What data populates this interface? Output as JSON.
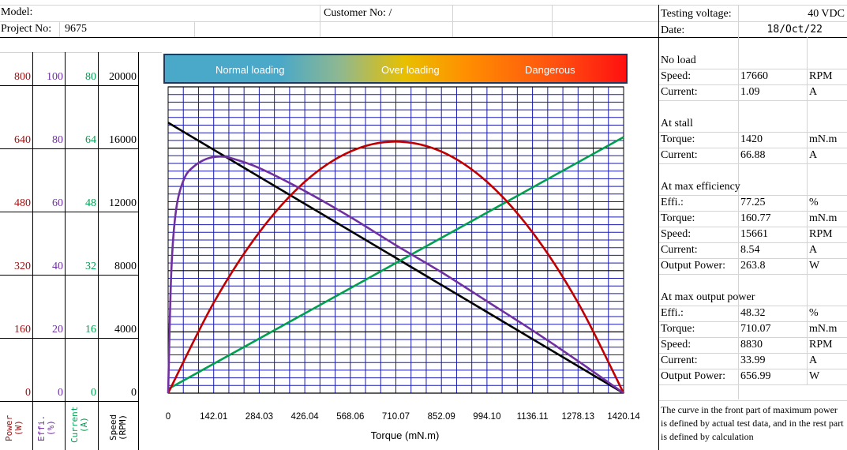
{
  "header": {
    "model_label": "Model:",
    "project_label": "Project No:",
    "project_value": "9675",
    "customer_label": "Customer No: /",
    "voltage_label": "Testing voltage:",
    "voltage_value": "40 VDC",
    "date_label": "Date:",
    "date_value": "18/Oct/22"
  },
  "loading_bar": {
    "normal": "Normal loading",
    "over": "Over loading",
    "danger": "Dangerous"
  },
  "left_axes": {
    "power": {
      "ticks": [
        "800",
        "640",
        "480",
        "320",
        "160",
        "0"
      ],
      "label": "Power (W)",
      "color": "#a01010"
    },
    "effi": {
      "ticks": [
        "100",
        "80",
        "60",
        "40",
        "20",
        "0"
      ],
      "label": "Effi. (%)",
      "color": "#7030a0"
    },
    "current": {
      "ticks": [
        "80",
        "64",
        "48",
        "32",
        "16",
        "0"
      ],
      "label": "Current (A)",
      "color": "#00a050"
    },
    "speed": {
      "ticks": [
        "20000",
        "16000",
        "12000",
        "8000",
        "4000",
        "0"
      ],
      "label": "Speed (RPM)",
      "color": "#000000"
    }
  },
  "right_panel": {
    "no_load": {
      "title": "No load",
      "rows": [
        {
          "label": "Speed:",
          "value": "17660",
          "unit": "RPM"
        },
        {
          "label": "Current:",
          "value": "1.09",
          "unit": "A"
        }
      ]
    },
    "stall": {
      "title": "At stall",
      "rows": [
        {
          "label": "Torque:",
          "value": "1420",
          "unit": "mN.m"
        },
        {
          "label": "Current:",
          "value": "66.88",
          "unit": "A"
        }
      ]
    },
    "max_eff": {
      "title": "At max efficiency",
      "rows": [
        {
          "label": "Effi.:",
          "value": "77.25",
          "unit": "%"
        },
        {
          "label": "Torque:",
          "value": "160.77",
          "unit": "mN.m"
        },
        {
          "label": "Speed:",
          "value": "15661",
          "unit": "RPM"
        },
        {
          "label": "Current:",
          "value": "8.54",
          "unit": "A"
        },
        {
          "label": "Output Power:",
          "value": "263.8",
          "unit": "W"
        }
      ]
    },
    "max_power": {
      "title": "At max output power",
      "rows": [
        {
          "label": "Effi.:",
          "value": "48.32",
          "unit": "%"
        },
        {
          "label": "Torque:",
          "value": "710.07",
          "unit": "mN.m"
        },
        {
          "label": "Speed:",
          "value": "8830",
          "unit": "RPM"
        },
        {
          "label": "Current:",
          "value": "33.99",
          "unit": "A"
        },
        {
          "label": "Output Power:",
          "value": "656.99",
          "unit": "W"
        }
      ]
    },
    "note": "The curve in the front part of maximum power is defined by actual test data, and in the rest part is defined by calculation"
  },
  "chart_data": {
    "type": "line",
    "xlabel": "Torque (mN.m)",
    "x_ticks": [
      "0",
      "142.01",
      "284.03",
      "426.04",
      "568.06",
      "710.07",
      "852.09",
      "994.10",
      "1136.11",
      "1278.13",
      "1420.14"
    ],
    "xlim": [
      0,
      1420.14
    ],
    "grid": true,
    "series": [
      {
        "color": "#000000",
        "axis": "speed",
        "ylim": [
          0,
          20000
        ],
        "x": [
          0,
          1420.14
        ],
        "y": [
          17660,
          0
        ]
      },
      {
        "color": "#00a050",
        "axis": "current",
        "ylim": [
          0,
          80
        ],
        "x": [
          0,
          1420.14
        ],
        "y": [
          1.09,
          66.88
        ]
      },
      {
        "color": "#c00000",
        "axis": "power",
        "ylim": [
          0,
          800
        ],
        "x": [
          0,
          142.01,
          284.03,
          426.04,
          568.06,
          710.07,
          852.09,
          994.1,
          1136.11,
          1278.13,
          1420.14
        ],
        "y": [
          0,
          236,
          420,
          552,
          631,
          657,
          631,
          552,
          420,
          236,
          0
        ]
      },
      {
        "color": "#7030a0",
        "axis": "effi",
        "ylim": [
          0,
          100
        ],
        "x": [
          0,
          10,
          25,
          50,
          80,
          120,
          160.77,
          200,
          284.03,
          426.04,
          568.06,
          710.07,
          852.09,
          994.1,
          1136.11,
          1278.13,
          1420.14
        ],
        "y": [
          0,
          40,
          60,
          70,
          74,
          76.5,
          77.25,
          76.6,
          73.5,
          66,
          57.5,
          48.3,
          39.5,
          30,
          20.5,
          10.5,
          0
        ]
      }
    ]
  }
}
